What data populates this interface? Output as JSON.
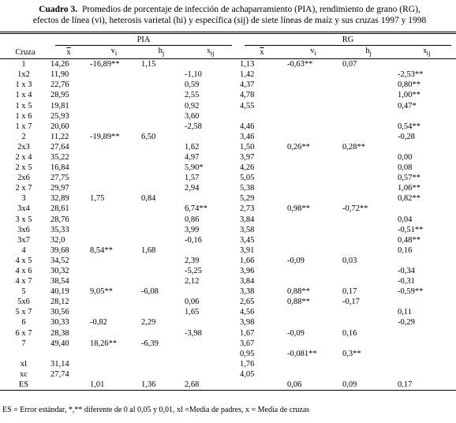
{
  "title": {
    "label": "Cuadro 3.",
    "line1": "Promedios de porcentaje de infección de achaparramiento (PIA), rendimiento de grano (RG),",
    "line2": "efectos de línea (vi), heterosis varietal (hi) y específica (sij) de siete líneas de maíz y sus cruzas 1997 y 1998"
  },
  "table": {
    "groups": [
      "PIA",
      "RG"
    ],
    "header": [
      "Cruza",
      "x",
      "v",
      "h",
      "s",
      "x",
      "v",
      "h",
      "s"
    ],
    "header_sub": [
      null,
      null,
      "i",
      "j",
      "ij",
      null,
      "i",
      "j",
      "ij"
    ],
    "rows": [
      [
        "1",
        "14,26",
        "-16,89**",
        "1,15",
        null,
        "1,13",
        "-0,63**",
        "0,07",
        null
      ],
      [
        "1x2",
        "11,90",
        null,
        null,
        "-1,10",
        "1,42",
        null,
        null,
        "-2,53**"
      ],
      [
        "1 x 3",
        "22,76",
        null,
        null,
        "0,59",
        "4,37",
        null,
        null,
        "0,80**"
      ],
      [
        "1 x 4",
        "28,95",
        null,
        null,
        "2,55",
        "4,78",
        null,
        null,
        "1,00**"
      ],
      [
        "1 x 5",
        "19,81",
        null,
        null,
        "0,92",
        "4,55",
        null,
        null,
        "0,47*"
      ],
      [
        "1 x 6",
        "25,93",
        null,
        null,
        "3,60",
        null,
        null,
        null,
        null
      ],
      [
        "1 x 7",
        "20,60",
        null,
        null,
        "-2,58",
        "4,46",
        null,
        null,
        "0,54**"
      ],
      [
        "2",
        "11,22",
        "-19,89**",
        "6,50",
        null,
        "3,46",
        null,
        null,
        "-0,28"
      ],
      [
        "2x3",
        "27,64",
        null,
        null,
        "1,62",
        "1,50",
        "0,26**",
        "0,28**",
        null
      ],
      [
        "2 x 4",
        "35,22",
        null,
        null,
        "4,97",
        "3,97",
        null,
        null,
        "0,00"
      ],
      [
        "2 x 5",
        "16,84",
        null,
        null,
        "5,90*",
        "4,26",
        null,
        null,
        "0,08"
      ],
      [
        "2x6",
        "27,75",
        null,
        null,
        "1,57",
        "5,05",
        null,
        null,
        "0,57**"
      ],
      [
        "2 x 7",
        "29,97",
        null,
        null,
        "2,94",
        "5,38",
        null,
        null,
        "1,06**"
      ],
      [
        "3",
        "32,89",
        "1,75",
        "0,84",
        null,
        "5,29",
        null,
        null,
        "0,82**"
      ],
      [
        "3x4",
        "28,61",
        null,
        null,
        "6,74**",
        "2,73",
        "0,98**",
        "-0,72**",
        null
      ],
      [
        "3 x 5",
        "28,76",
        null,
        null,
        "0,86",
        "3,84",
        null,
        null,
        "0,04"
      ],
      [
        "3x6",
        "35,33",
        null,
        null,
        "3,99",
        "3,58",
        null,
        null,
        "-0,51**"
      ],
      [
        "3x7",
        "32,0",
        null,
        null,
        "-0,16",
        "3,45",
        null,
        null,
        "0,48**"
      ],
      [
        "4",
        "39,68",
        "8,54**",
        "1,68",
        null,
        "3,91",
        null,
        null,
        "0,16"
      ],
      [
        "4 x 5",
        "34,52",
        null,
        null,
        "2,39",
        "1,66",
        "-0,09",
        "0,03",
        null
      ],
      [
        "4 x 6",
        "30,32",
        null,
        null,
        "-5,25",
        "3,96",
        null,
        null,
        "-0,34"
      ],
      [
        "4 x 7",
        "38,54",
        null,
        null,
        "2,12",
        "3,84",
        null,
        null,
        "-0,31"
      ],
      [
        "5",
        "40,19",
        "9,05**",
        "-6,08",
        null,
        "3,38",
        "0,88**",
        "0,17",
        "-0,59**"
      ],
      [
        "5x6",
        "28,12",
        null,
        null,
        "0,06",
        "2,65",
        "0,88**",
        "-0,17",
        null
      ],
      [
        "5 x 7",
        "30,56",
        null,
        null,
        "1,65",
        "4,56",
        null,
        null,
        "0,11"
      ],
      [
        "6",
        "30,33",
        "-0,82",
        "2,29",
        null,
        "3,98",
        null,
        null,
        "-0,29"
      ],
      [
        "6 x 7",
        "28,38",
        null,
        null,
        "-3,98",
        "1,67",
        "-0,09",
        "0,16",
        null
      ],
      [
        "7",
        "49,40",
        "18,26**",
        "-6,39",
        null,
        "3,67",
        null,
        null,
        null
      ],
      [
        null,
        null,
        null,
        null,
        null,
        "0,95",
        "-0,081**",
        "0,3**",
        null
      ],
      [
        "xl",
        "31,14",
        null,
        null,
        null,
        "1,76",
        null,
        null,
        null
      ],
      [
        "xc",
        "27,74",
        null,
        null,
        null,
        "4,05",
        null,
        null,
        null
      ],
      [
        "ES",
        null,
        "1,01",
        "1,36",
        "2,68",
        null,
        "0,06",
        "0,09",
        "0,17"
      ]
    ]
  },
  "footnote": "ES = Error estándar, *,** diferente de 0 al 0,05 y 0,01,   xl =Media de padres,   x = Media de cruzas"
}
